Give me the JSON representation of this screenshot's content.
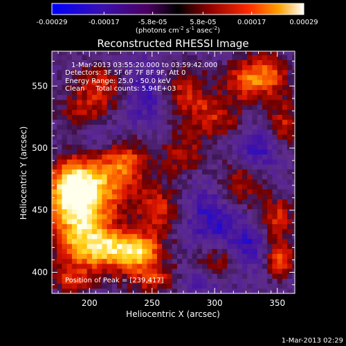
{
  "colorbar": {
    "ticks": [
      "-0.00029",
      "-0.00017",
      "-5.8e-05",
      "5.8e-05",
      "0.00017",
      "0.00029"
    ],
    "tick_values": [
      -0.00029,
      -0.00017,
      -5.8e-05,
      5.8e-05,
      0.00017,
      0.00029
    ],
    "range": [
      -0.00029,
      0.00029
    ],
    "unit_main": "(photons cm",
    "unit_sup1": "-2",
    "unit_mid": " s",
    "unit_sup2": "-1",
    "unit_tail": " asec",
    "unit_sup3": "-2",
    "unit_close": ")",
    "colors": [
      "#0000ff",
      "#2000c0",
      "#4b0082",
      "#8b0000",
      "#ff0000",
      "#ff8c00",
      "#ffff00",
      "#ffffff"
    ]
  },
  "chart_data": {
    "type": "heatmap",
    "title": "Reconstructed RHESSI Image",
    "xlabel": "Heliocentric X (arcsec)",
    "ylabel": "Heliocentric Y (arcsec)",
    "xlim": [
      170,
      364
    ],
    "ylim": [
      383,
      578
    ],
    "xticks": [
      200,
      250,
      300,
      350
    ],
    "yticks": [
      400,
      450,
      500,
      550
    ],
    "annotations": {
      "time": "1-Mar-2013 03:55:20.000 to 03:59:42.000",
      "detectors": "Detectors: 3F 5F 6F 7F 8F 9F, Att 0",
      "energy": "Energy Range: 25.0 - 50.0 keV",
      "clean": "Clean     Total counts: 5.94E+03",
      "peak": "Position of Peak = [239,417]"
    },
    "peak": [
      239,
      417
    ],
    "footer_date": "1-Mar-2013 02:29",
    "sources": [
      {
        "x": 239,
        "y": 417,
        "amp": 1.0,
        "sx": 14,
        "sy": 10
      },
      {
        "x": 210,
        "y": 420,
        "amp": 0.8,
        "sx": 16,
        "sy": 12
      },
      {
        "x": 190,
        "y": 440,
        "amp": 0.85,
        "sx": 18,
        "sy": 22
      },
      {
        "x": 205,
        "y": 470,
        "amp": 0.75,
        "sx": 22,
        "sy": 18
      },
      {
        "x": 185,
        "y": 470,
        "amp": 0.7,
        "sx": 12,
        "sy": 14
      },
      {
        "x": 230,
        "y": 490,
        "amp": 0.55,
        "sx": 14,
        "sy": 12
      },
      {
        "x": 255,
        "y": 450,
        "amp": 0.55,
        "sx": 12,
        "sy": 14
      },
      {
        "x": 210,
        "y": 550,
        "amp": 0.55,
        "sx": 16,
        "sy": 12
      },
      {
        "x": 195,
        "y": 525,
        "amp": 0.45,
        "sx": 14,
        "sy": 12
      },
      {
        "x": 275,
        "y": 545,
        "amp": 0.55,
        "sx": 14,
        "sy": 14
      },
      {
        "x": 300,
        "y": 525,
        "amp": 0.5,
        "sx": 14,
        "sy": 12
      },
      {
        "x": 325,
        "y": 555,
        "amp": 0.7,
        "sx": 12,
        "sy": 12
      },
      {
        "x": 345,
        "y": 560,
        "amp": 0.6,
        "sx": 10,
        "sy": 12
      },
      {
        "x": 355,
        "y": 520,
        "amp": 0.5,
        "sx": 10,
        "sy": 14
      },
      {
        "x": 320,
        "y": 470,
        "amp": 0.5,
        "sx": 12,
        "sy": 14
      },
      {
        "x": 350,
        "y": 445,
        "amp": 0.55,
        "sx": 10,
        "sy": 12
      },
      {
        "x": 352,
        "y": 412,
        "amp": 0.75,
        "sx": 8,
        "sy": 10
      },
      {
        "x": 300,
        "y": 410,
        "amp": 0.5,
        "sx": 14,
        "sy": 10
      },
      {
        "x": 275,
        "y": 495,
        "amp": 0.45,
        "sx": 12,
        "sy": 12
      },
      {
        "x": 250,
        "y": 395,
        "amp": 0.55,
        "sx": 16,
        "sy": 8
      },
      {
        "x": 185,
        "y": 395,
        "amp": 0.5,
        "sx": 12,
        "sy": 8
      }
    ],
    "sinks": [
      {
        "x": 245,
        "y": 545,
        "amp": 0.45,
        "sx": 14,
        "sy": 16
      },
      {
        "x": 205,
        "y": 510,
        "amp": 0.3,
        "sx": 14,
        "sy": 10
      },
      {
        "x": 300,
        "y": 440,
        "amp": 0.45,
        "sx": 16,
        "sy": 20
      },
      {
        "x": 330,
        "y": 420,
        "amp": 0.4,
        "sx": 10,
        "sy": 12
      },
      {
        "x": 335,
        "y": 500,
        "amp": 0.4,
        "sx": 12,
        "sy": 12
      },
      {
        "x": 285,
        "y": 395,
        "amp": 0.3,
        "sx": 12,
        "sy": 8
      }
    ]
  }
}
